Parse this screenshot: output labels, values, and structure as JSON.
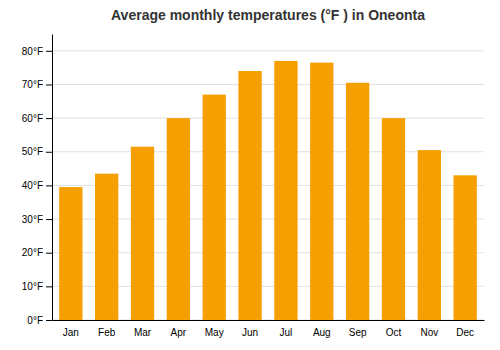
{
  "chart_data": {
    "type": "bar",
    "title": "Average monthly temperatures (°F ) in Oneonta",
    "categories": [
      "Jan",
      "Feb",
      "Mar",
      "Apr",
      "May",
      "Jun",
      "Jul",
      "Aug",
      "Sep",
      "Oct",
      "Nov",
      "Dec"
    ],
    "values": [
      39.5,
      43.5,
      51.5,
      60.0,
      67.0,
      74.0,
      77.0,
      76.5,
      70.5,
      60.0,
      50.5,
      43.0
    ],
    "color": "#F5A000",
    "ylim": [
      0,
      85
    ],
    "yticks": [
      {
        "value": 0,
        "label": "0°F"
      },
      {
        "value": 10,
        "label": "10°F"
      },
      {
        "value": 20,
        "label": "20°F"
      },
      {
        "value": 30,
        "label": "30°F"
      },
      {
        "value": 40,
        "label": "40°F"
      },
      {
        "value": 50,
        "label": "50°F"
      },
      {
        "value": 60,
        "label": "60°F"
      },
      {
        "value": 70,
        "label": "70°F"
      },
      {
        "value": 80,
        "label": "80°F"
      }
    ],
    "grid": true
  }
}
